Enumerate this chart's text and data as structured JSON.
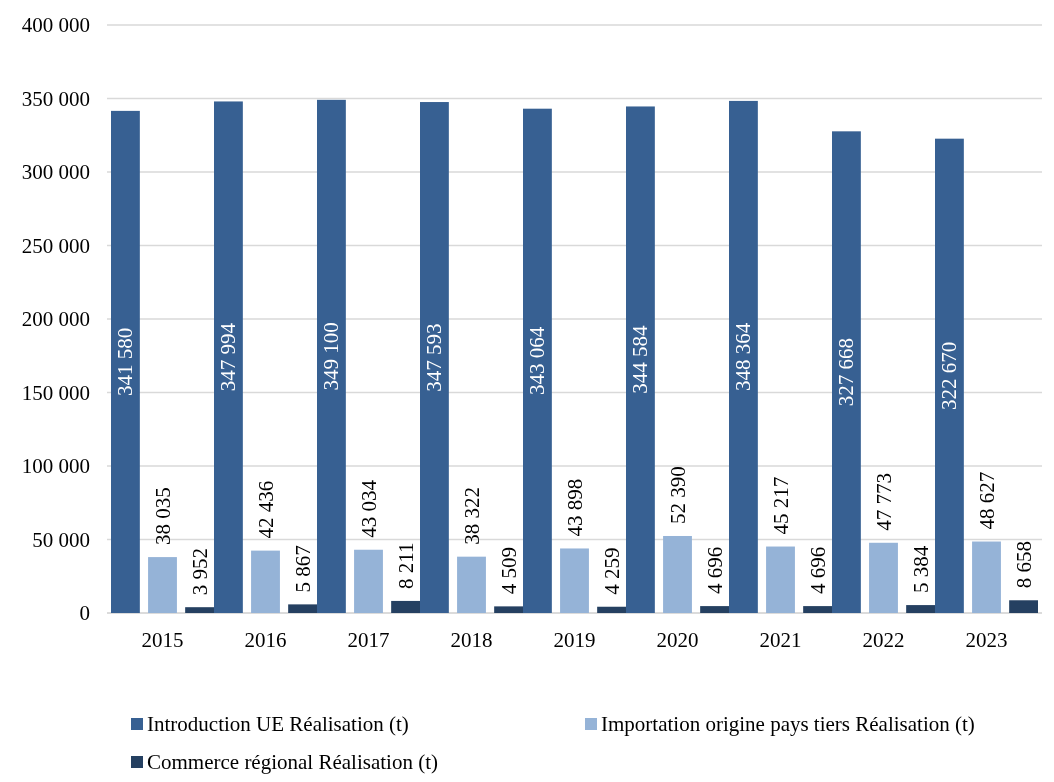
{
  "chart_data": {
    "type": "bar",
    "categories": [
      "2015",
      "2016",
      "2017",
      "2018",
      "2019",
      "2020",
      "2021",
      "2022",
      "2023"
    ],
    "ylim": [
      0,
      400000
    ],
    "yticks": [
      0,
      {
        "value": 50000,
        "label": "50 000"
      },
      {
        "value": 100000,
        "label": "100 000"
      },
      {
        "value": 150000,
        "label": "150 000"
      },
      {
        "value": 200000,
        "label": "200 000"
      },
      {
        "value": 250000,
        "label": "250 000"
      },
      {
        "value": 300000,
        "label": "300 000"
      },
      {
        "value": 350000,
        "label": "350 000"
      },
      {
        "value": 400000,
        "label": "400 000"
      }
    ],
    "grid": "y",
    "legend": "bottom",
    "series": [
      {
        "name": "Introduction UE Réalisation (t)",
        "color": "#376092",
        "values": [
          341580,
          347994,
          349100,
          347593,
          343064,
          344584,
          348364,
          327668,
          322670
        ],
        "value_labels": [
          "341 580",
          "347 994",
          "349 100",
          "347 593",
          "343 064",
          "344 584",
          "348 364",
          "327 668",
          "322 670"
        ]
      },
      {
        "name": "Importation origine pays tiers Réalisation (t)",
        "color": "#95b3d7",
        "values": [
          38035,
          42436,
          43034,
          38322,
          43898,
          52390,
          45217,
          47773,
          48627
        ],
        "value_labels": [
          "38 035",
          "42 436",
          "43 034",
          "38 322",
          "43 898",
          "52 390",
          "45 217",
          "47 773",
          "48 627"
        ]
      },
      {
        "name": "Commerce régional Réalisation (t)",
        "color": "#254061",
        "values": [
          3952,
          5867,
          8211,
          4509,
          4259,
          4696,
          4696,
          5384,
          8658
        ],
        "value_labels": [
          "3 952",
          "5 867",
          "8 211",
          "4 509",
          "4 259",
          "4 696",
          "4 696",
          "5 384",
          "8 658"
        ]
      }
    ]
  }
}
